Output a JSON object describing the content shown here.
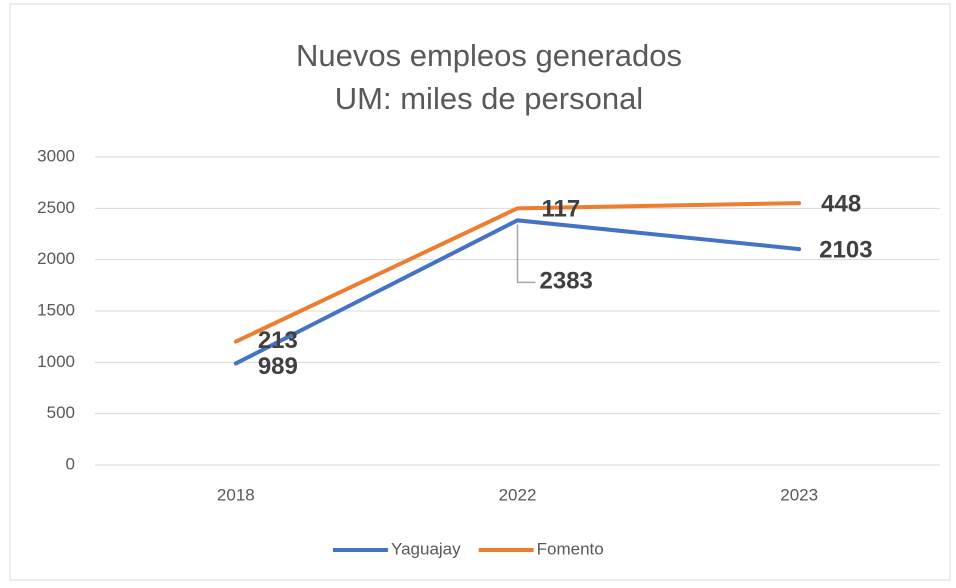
{
  "chart_data": {
    "type": "line",
    "stacked": true,
    "title": "Nuevos empleos generados",
    "subtitle": "UM: miles de personal",
    "categories": [
      "2018",
      "2022",
      "2023"
    ],
    "series": [
      {
        "name": "Yaguajay",
        "color": "#4472c4",
        "values": [
          989,
          2383,
          2103
        ]
      },
      {
        "name": "Fomento",
        "color": "#ed7d31",
        "values": [
          213,
          117,
          448
        ]
      }
    ],
    "ylim": [
      0,
      3000
    ],
    "yticks": [
      0,
      500,
      1000,
      1500,
      2000,
      2500,
      3000
    ],
    "grid": true,
    "legend": "bottom"
  }
}
